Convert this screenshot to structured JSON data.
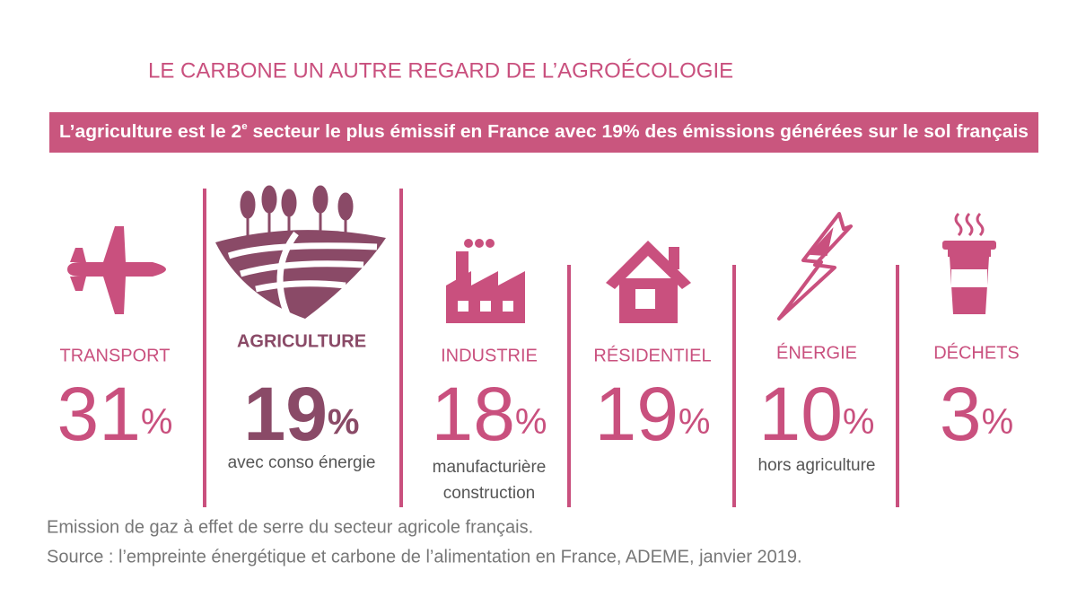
{
  "header": {
    "title": "LE CARBONE UN AUTRE REGARD DE L’AGROÉCOLOGIE",
    "banner": [
      "L’agriculture est le 2",
      "e",
      " secteur le plus émissif en France avec 19% des émissions générées sur le sol français"
    ]
  },
  "sectors": [
    {
      "name": "TRANSPORT",
      "value": 31,
      "unit": "%",
      "notes": []
    },
    {
      "name": "AGRICULTURE",
      "value": 19,
      "unit": "%",
      "notes": [
        "avec conso énergie"
      ]
    },
    {
      "name": "INDUSTRIE",
      "value": 18,
      "unit": "%",
      "notes": [
        "manufacturière",
        "construction"
      ]
    },
    {
      "name": "RÉSIDENTIEL",
      "value": 19,
      "unit": "%",
      "notes": []
    },
    {
      "name": "ÉNERGIE",
      "value": 10,
      "unit": "%",
      "notes": [
        "hors agriculture"
      ]
    },
    {
      "name": "DÉCHETS",
      "value": 3,
      "unit": "%",
      "notes": []
    }
  ],
  "footer": [
    "Emission de gaz à effet de serre du secteur agricole français.",
    "Source : l’empreinte énergétique et carbone de l’alimentation en France, ADEME, janvier 2019."
  ]
}
